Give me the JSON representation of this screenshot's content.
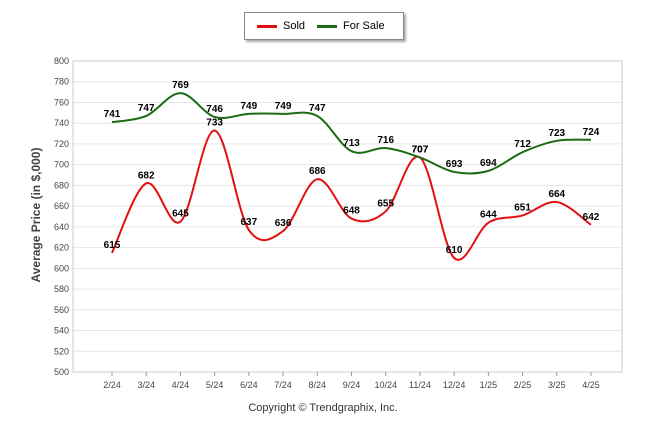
{
  "chart_data": {
    "type": "line",
    "ylabel": "Average Price (in $,000)",
    "xlabel": "",
    "ylim": [
      500,
      800
    ],
    "yticks": [
      500,
      520,
      540,
      560,
      580,
      600,
      620,
      640,
      660,
      680,
      700,
      720,
      740,
      760,
      780,
      800
    ],
    "categories": [
      "2/24",
      "3/24",
      "4/24",
      "5/24",
      "6/24",
      "7/24",
      "8/24",
      "9/24",
      "10/24",
      "11/24",
      "12/24",
      "1/25",
      "2/25",
      "3/25",
      "4/25"
    ],
    "series": [
      {
        "name": "Sold",
        "color": "#e31010",
        "values": [
          615,
          682,
          645,
          733,
          637,
          636,
          686,
          648,
          655,
          707,
          610,
          644,
          651,
          664,
          642
        ]
      },
      {
        "name": "For Sale",
        "color": "#1a6b12",
        "values": [
          741,
          747,
          769,
          746,
          749,
          749,
          747,
          713,
          716,
          707,
          693,
          694,
          712,
          723,
          724
        ]
      }
    ],
    "legend": "top-center",
    "grid": true
  },
  "footer": "Copyright © Trendgraphix, Inc."
}
